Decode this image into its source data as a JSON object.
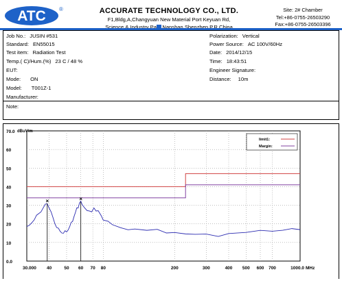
{
  "header": {
    "logo_text": "ATC",
    "logo_mark": "®",
    "company_name": "ACCURATE TECHNOLOGY CO., LTD.",
    "address_line1": "F1,Bldg,A,Changyuan New Material Port Keyuan Rd,",
    "address_line2": "Science & Industry Park,Nanshan Shenzhen,P.R.China",
    "site": "Site:  2# Chamber",
    "tel": "Tel:+86-0755-26503290",
    "fax": "Fax:+86-0755-26503396"
  },
  "info": {
    "job_no_label": "Job No.:",
    "job_no": "JUSIN #531",
    "standard_label": "Standard:",
    "standard": "EN55015",
    "test_item_label": "Test item:",
    "test_item": "Radiation Test",
    "temp_label": "Temp.(  C)/Hum.(%)",
    "temp_value": "23   C / 48 %",
    "eut_label": "EUT:",
    "mode_label": "Mode:",
    "mode": "ON",
    "model_label": "Model:",
    "model": "T001Z-1",
    "manufacturer_label": "Manufacturer:",
    "polarization_label": "Polarization:",
    "polarization": "Vertical",
    "power_label": "Power Source:",
    "power": "AC 100V/60Hz",
    "date_label": "Date:",
    "date": "2014/12/15",
    "time_label": "Time:",
    "time": "18:43:51",
    "engineer_label": "Engineer Signature:",
    "distance_label": "Distance:",
    "distance": "10m",
    "note_label": "Note:"
  },
  "chart_data": {
    "type": "line",
    "ylabel": "dBuV/m",
    "xlabel": "MHz",
    "x_scale": "log",
    "xlim": [
      30,
      1000
    ],
    "ylim": [
      0,
      70
    ],
    "y_ticks": [
      "70.0",
      "60",
      "50",
      "40",
      "30",
      "20",
      "10",
      "0.0"
    ],
    "x_ticks": [
      {
        "value": 30,
        "label": "30.000"
      },
      {
        "value": 40,
        "label": "40"
      },
      {
        "value": 50,
        "label": "50"
      },
      {
        "value": 60,
        "label": "60"
      },
      {
        "value": 70,
        "label": "70"
      },
      {
        "value": 80,
        "label": "80"
      },
      {
        "value": 200,
        "label": "200"
      },
      {
        "value": 300,
        "label": "300"
      },
      {
        "value": 400,
        "label": "400"
      },
      {
        "value": 500,
        "label": "500"
      },
      {
        "value": 600,
        "label": "600"
      },
      {
        "value": 700,
        "label": "700"
      },
      {
        "value": 1000,
        "label": "1000.0"
      }
    ],
    "grid": true,
    "legend": {
      "position": "top-right",
      "entries": [
        {
          "label": "limit1:",
          "color": "#d04040"
        },
        {
          "label": "Margin:",
          "color": "#8040a0"
        }
      ]
    },
    "series": [
      {
        "name": "limit1:",
        "color": "#d04040",
        "points": [
          [
            30,
            40
          ],
          [
            230,
            40
          ],
          [
            230,
            47
          ],
          [
            1000,
            47
          ]
        ]
      },
      {
        "name": "Margin:",
        "color": "#8040a0",
        "points": [
          [
            30,
            34
          ],
          [
            230,
            34
          ],
          [
            230,
            41
          ],
          [
            1000,
            41
          ]
        ]
      },
      {
        "name": "",
        "color": "#2a2ab0",
        "points": [
          [
            30,
            18
          ],
          [
            31,
            19
          ],
          [
            32,
            21
          ],
          [
            33,
            22.5
          ],
          [
            34,
            24
          ],
          [
            35,
            25.5
          ],
          [
            36,
            27
          ],
          [
            37,
            28.5
          ],
          [
            38,
            30
          ],
          [
            39,
            31
          ],
          [
            40,
            29
          ],
          [
            41,
            26
          ],
          [
            42,
            23
          ],
          [
            43,
            20.5
          ],
          [
            44,
            18.5
          ],
          [
            45,
            17
          ],
          [
            46,
            16
          ],
          [
            47,
            15.5
          ],
          [
            48,
            15.2
          ],
          [
            49,
            15.5
          ],
          [
            50,
            16
          ],
          [
            51,
            17
          ],
          [
            52,
            18.5
          ],
          [
            53,
            20
          ],
          [
            54,
            22
          ],
          [
            55,
            24
          ],
          [
            56,
            26
          ],
          [
            57,
            28
          ],
          [
            58,
            29.5
          ],
          [
            59,
            31
          ],
          [
            60,
            32
          ],
          [
            61,
            30
          ],
          [
            63,
            28
          ],
          [
            65,
            27
          ],
          [
            67,
            26
          ],
          [
            69,
            26.5
          ],
          [
            71,
            27.5
          ],
          [
            73,
            27
          ],
          [
            75,
            26
          ],
          [
            78,
            24.5
          ],
          [
            80,
            23
          ],
          [
            85,
            21
          ],
          [
            90,
            19.5
          ],
          [
            100,
            18
          ],
          [
            110,
            17.5
          ],
          [
            120,
            17
          ],
          [
            140,
            16.5
          ],
          [
            160,
            16
          ],
          [
            180,
            15.5
          ],
          [
            200,
            15.2
          ],
          [
            230,
            14.5
          ],
          [
            260,
            14
          ],
          [
            300,
            13.5
          ],
          [
            350,
            14
          ],
          [
            400,
            14.5
          ],
          [
            500,
            15
          ],
          [
            600,
            15.5
          ],
          [
            700,
            16
          ],
          [
            800,
            16.5
          ],
          [
            900,
            17
          ],
          [
            1000,
            17.5
          ]
        ]
      }
    ],
    "markers": [
      {
        "x": 39,
        "label": "×"
      },
      {
        "x": 60,
        "label": "×"
      }
    ]
  }
}
